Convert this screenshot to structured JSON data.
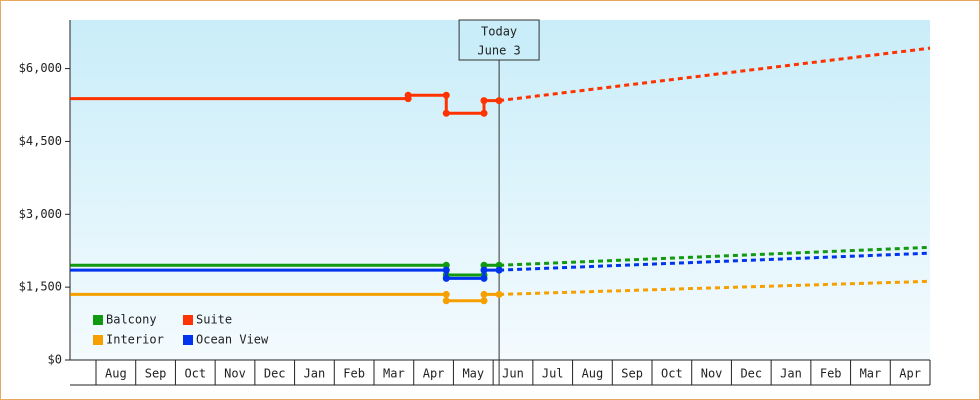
{
  "chart_data": {
    "type": "line",
    "categories": [
      "Aug",
      "Sep",
      "Oct",
      "Nov",
      "Dec",
      "Jan",
      "Feb",
      "Mar",
      "Apr",
      "May",
      "Jun",
      "Jul",
      "Aug",
      "Sep",
      "Oct",
      "Nov",
      "Dec",
      "Jan",
      "Feb",
      "Mar",
      "Apr"
    ],
    "xlim": [
      -0.65,
      21
    ],
    "ylim": [
      0,
      7000
    ],
    "yticks": [
      {
        "value": 0,
        "label": "$0"
      },
      {
        "value": 1500,
        "label": "$1,500"
      },
      {
        "value": 3000,
        "label": "$3,000"
      },
      {
        "value": 4500,
        "label": "$4,500"
      },
      {
        "value": 6000,
        "label": "$6,000"
      }
    ],
    "annotation": {
      "lines": [
        "Today",
        "June 3"
      ],
      "x": 10.15
    },
    "legend": "lower left",
    "series": [
      {
        "name": "Balcony",
        "color": "#119911",
        "x": [
          -0.65,
          8.82,
          8.82,
          9.77,
          9.77,
          10.15
        ],
        "values": [
          1950,
          1950,
          1750,
          1750,
          1950,
          1950
        ],
        "forecast": {
          "x": [
            10.15,
            21.65
          ],
          "values": [
            1950,
            2320
          ]
        }
      },
      {
        "name": "Suite",
        "color": "#ff3300",
        "x": [
          -0.65,
          7.86,
          7.86,
          8.82,
          8.82,
          9.77,
          9.77,
          10.15
        ],
        "values": [
          5380,
          5380,
          5450,
          5450,
          5080,
          5080,
          5340,
          5340
        ],
        "forecast": {
          "x": [
            10.15,
            21.65
          ],
          "values": [
            5340,
            6420
          ]
        }
      },
      {
        "name": "Interior",
        "color": "#f5a000",
        "x": [
          -0.65,
          8.82,
          8.82,
          9.77,
          9.77,
          10.15
        ],
        "values": [
          1350,
          1350,
          1220,
          1220,
          1350,
          1350
        ],
        "forecast": {
          "x": [
            10.15,
            21.65
          ],
          "values": [
            1350,
            1620
          ]
        }
      },
      {
        "name": "Ocean View",
        "color": "#0033ee",
        "x": [
          -0.65,
          8.82,
          8.82,
          9.77,
          9.77,
          10.15
        ],
        "values": [
          1850,
          1850,
          1680,
          1680,
          1850,
          1850
        ],
        "forecast": {
          "x": [
            10.15,
            21.65
          ],
          "values": [
            1850,
            2200
          ]
        }
      }
    ]
  }
}
